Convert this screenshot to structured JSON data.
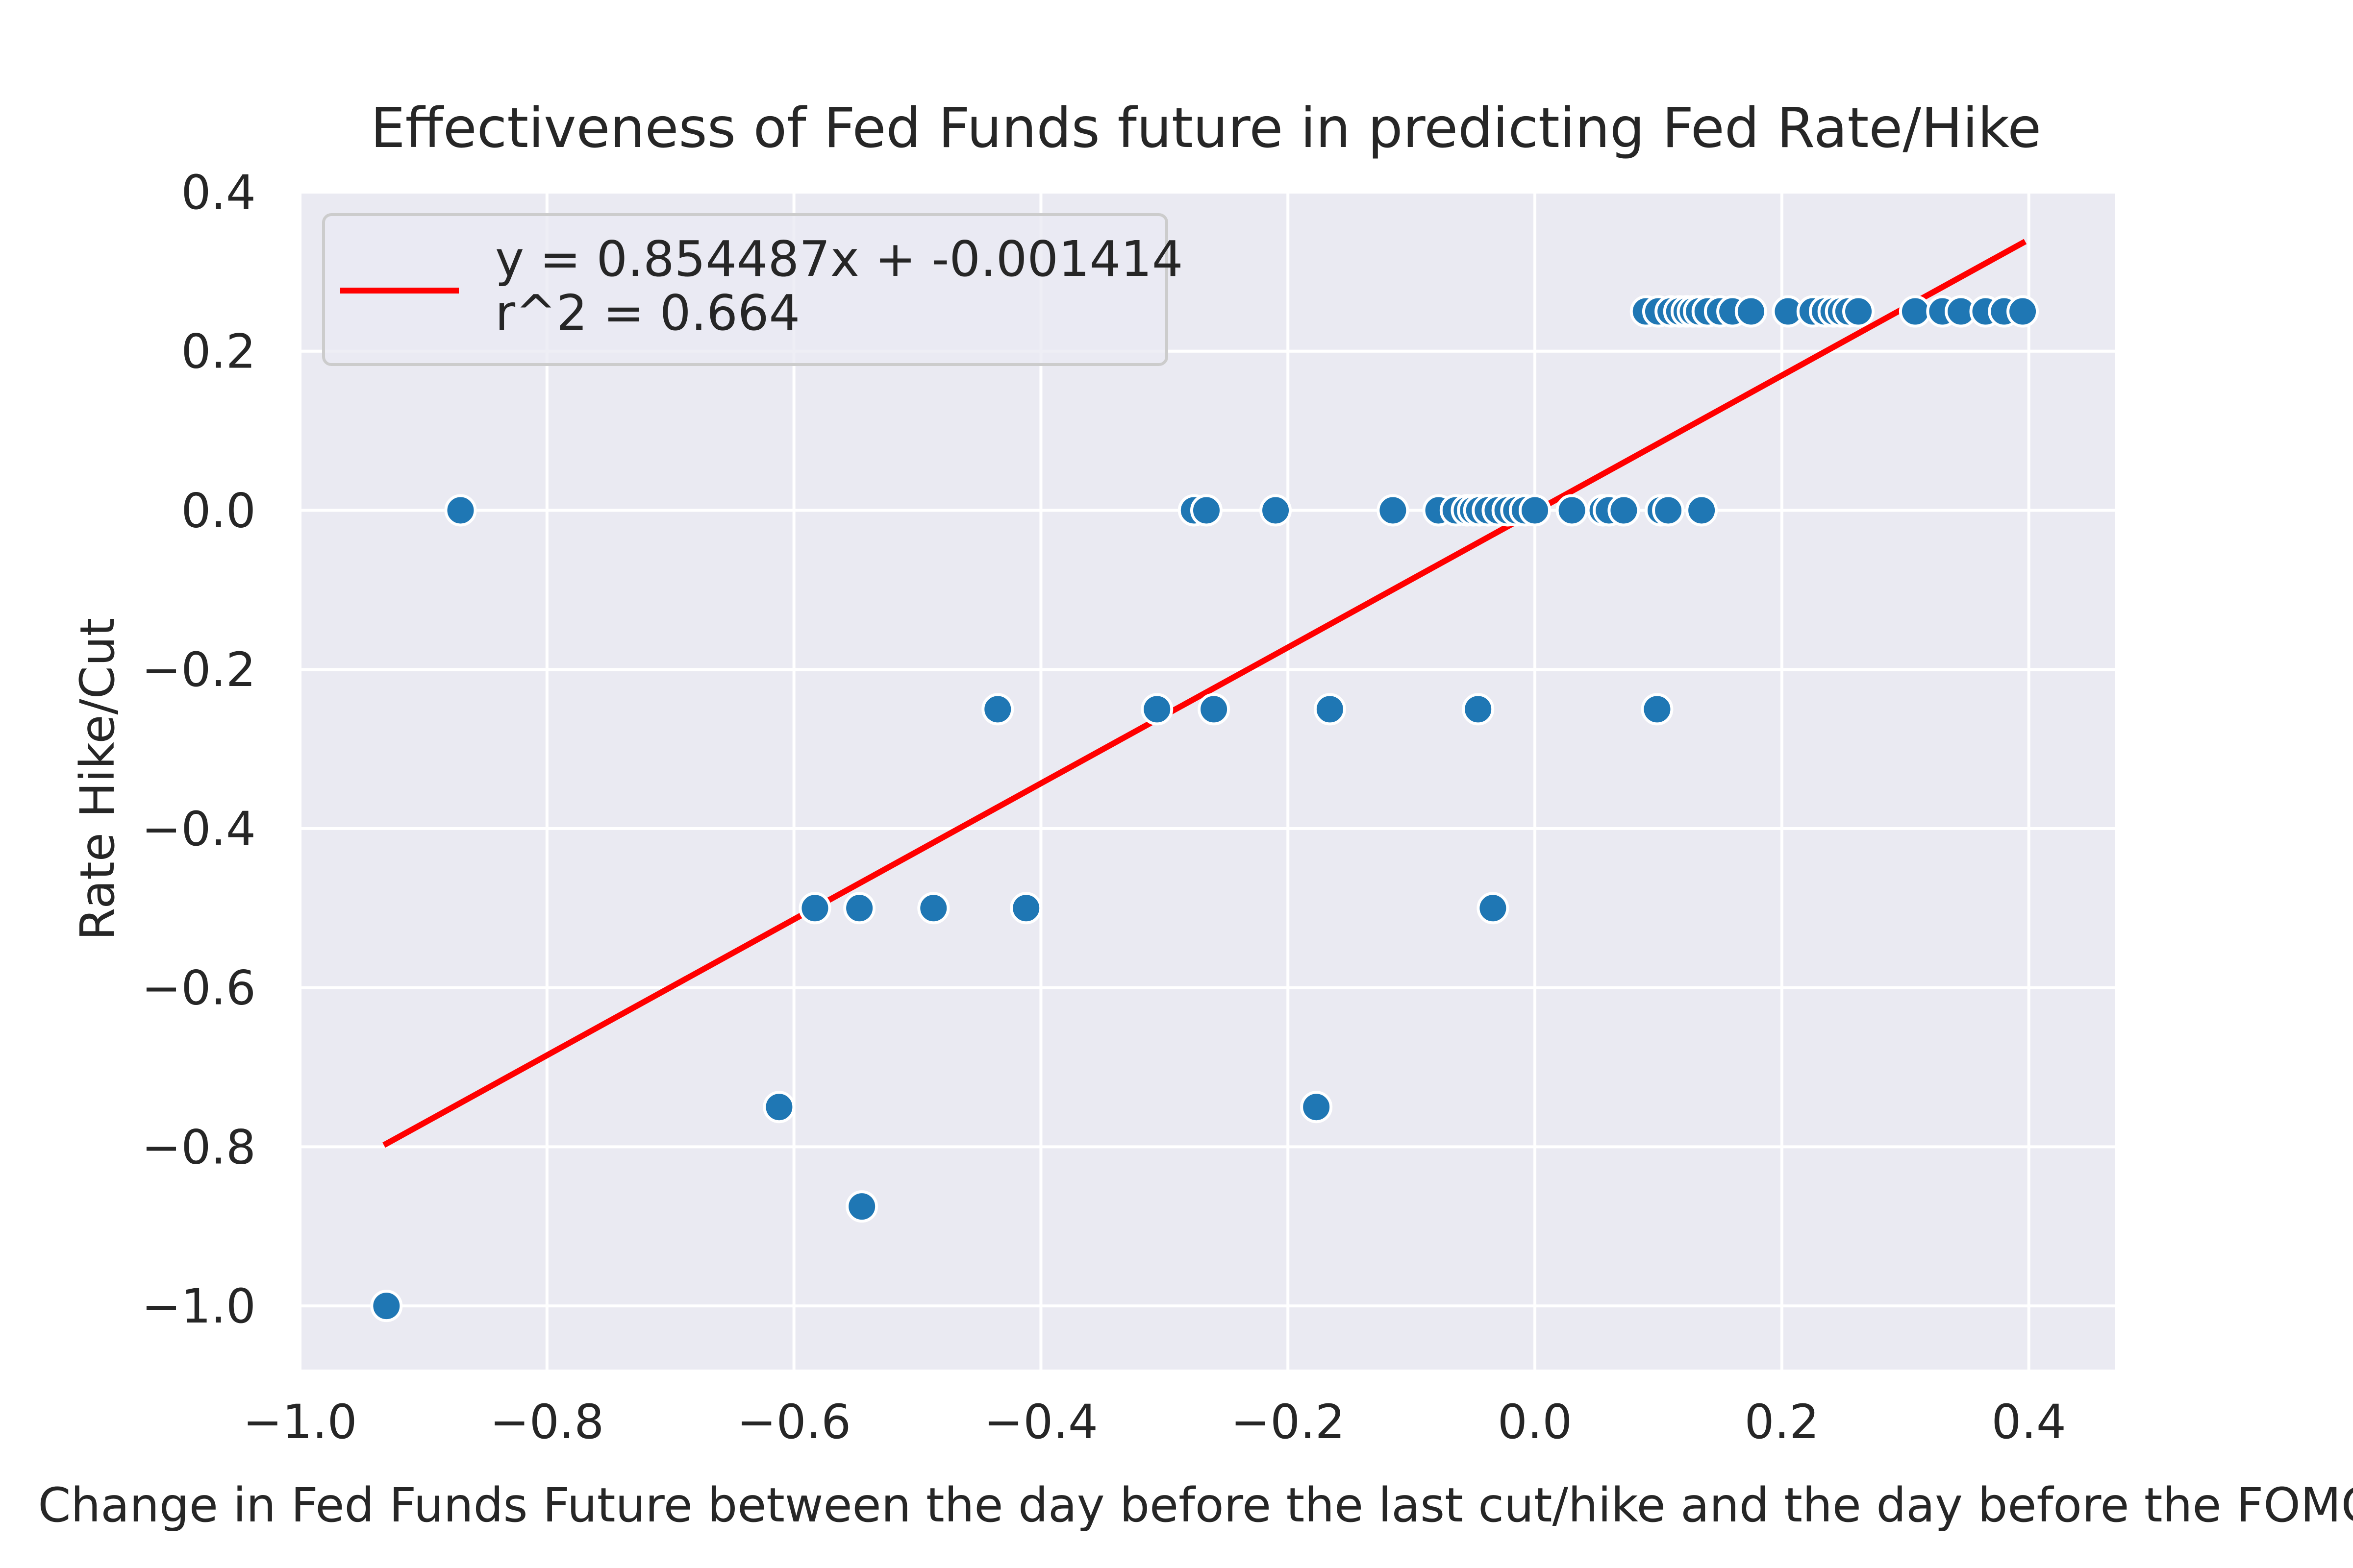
{
  "chart_data": {
    "type": "scatter",
    "title": "Effectiveness of Fed Funds future in predicting Fed Rate/Hike",
    "xlabel": "Change in Fed Funds Future between the day before the last cut/hike and the day before the FOMC",
    "ylabel": "Rate Hike/Cut",
    "xlim": [
      -1.0,
      0.47
    ],
    "ylim": [
      -1.08,
      0.4
    ],
    "x_ticks": [
      -1.0,
      -0.8,
      -0.6,
      -0.4,
      -0.2,
      0.0,
      0.2,
      0.4
    ],
    "x_tick_labels": [
      "−1.0",
      "−0.8",
      "−0.6",
      "−0.4",
      "−0.2",
      "0.0",
      "0.2",
      "0.4"
    ],
    "y_ticks": [
      -1.0,
      -0.8,
      -0.6,
      -0.4,
      -0.2,
      0.0,
      0.2,
      0.4
    ],
    "y_tick_labels": [
      "−1.0",
      "−0.8",
      "−0.6",
      "−0.4",
      "−0.2",
      "0.0",
      "0.2",
      "0.4"
    ],
    "grid": true,
    "legend_position": "upper-left",
    "colors": {
      "background": "#eaeaf2",
      "grid": "#ffffff",
      "point": "#1f77b4",
      "point_edge": "#ffffff",
      "fit_line": "#ff0000"
    },
    "series": [
      {
        "type": "scatter",
        "points": [
          [
            -0.93,
            -1.0
          ],
          [
            -0.87,
            0.0
          ],
          [
            -0.612,
            -0.75
          ],
          [
            -0.545,
            -0.875
          ],
          [
            -0.583,
            -0.5
          ],
          [
            -0.547,
            -0.5
          ],
          [
            -0.487,
            -0.5
          ],
          [
            -0.412,
            -0.5
          ],
          [
            -0.435,
            -0.25
          ],
          [
            -0.306,
            -0.25
          ],
          [
            -0.26,
            -0.25
          ],
          [
            -0.166,
            -0.25
          ],
          [
            -0.046,
            -0.25
          ],
          [
            0.099,
            -0.25
          ],
          [
            -0.177,
            -0.75
          ],
          [
            -0.034,
            -0.5
          ],
          [
            -0.276,
            0.0
          ],
          [
            -0.266,
            0.0
          ],
          [
            -0.21,
            0.0
          ],
          [
            -0.115,
            0.0
          ],
          [
            -0.078,
            0.0
          ],
          [
            -0.064,
            0.0
          ],
          [
            -0.055,
            0.0
          ],
          [
            -0.05,
            0.0
          ],
          [
            -0.045,
            0.0
          ],
          [
            -0.038,
            0.0
          ],
          [
            -0.03,
            0.0
          ],
          [
            -0.022,
            0.0
          ],
          [
            -0.015,
            0.0
          ],
          [
            -0.008,
            0.0
          ],
          [
            0.0,
            0.0
          ],
          [
            0.03,
            0.0
          ],
          [
            0.055,
            0.0
          ],
          [
            0.06,
            0.0
          ],
          [
            0.072,
            0.0
          ],
          [
            0.102,
            0.0
          ],
          [
            0.108,
            0.0
          ],
          [
            0.135,
            0.0
          ],
          [
            0.09,
            0.25
          ],
          [
            0.1,
            0.25
          ],
          [
            0.11,
            0.25
          ],
          [
            0.117,
            0.25
          ],
          [
            0.123,
            0.25
          ],
          [
            0.128,
            0.25
          ],
          [
            0.133,
            0.25
          ],
          [
            0.14,
            0.25
          ],
          [
            0.15,
            0.25
          ],
          [
            0.16,
            0.25
          ],
          [
            0.175,
            0.25
          ],
          [
            0.205,
            0.25
          ],
          [
            0.225,
            0.25
          ],
          [
            0.235,
            0.25
          ],
          [
            0.242,
            0.25
          ],
          [
            0.248,
            0.25
          ],
          [
            0.254,
            0.25
          ],
          [
            0.262,
            0.25
          ],
          [
            0.308,
            0.25
          ],
          [
            0.33,
            0.25
          ],
          [
            0.345,
            0.25
          ],
          [
            0.365,
            0.25
          ],
          [
            0.38,
            0.25
          ],
          [
            0.395,
            0.25
          ]
        ]
      },
      {
        "type": "line",
        "name": "y = 0.854487x + -0.001414\nr^2 = 0.664",
        "points": [
          [
            -0.93,
            -0.7961
          ],
          [
            0.395,
            0.3361
          ]
        ]
      }
    ],
    "legend": {
      "line1": "y = 0.854487x + -0.001414",
      "line2": "r^2 = 0.664"
    }
  }
}
